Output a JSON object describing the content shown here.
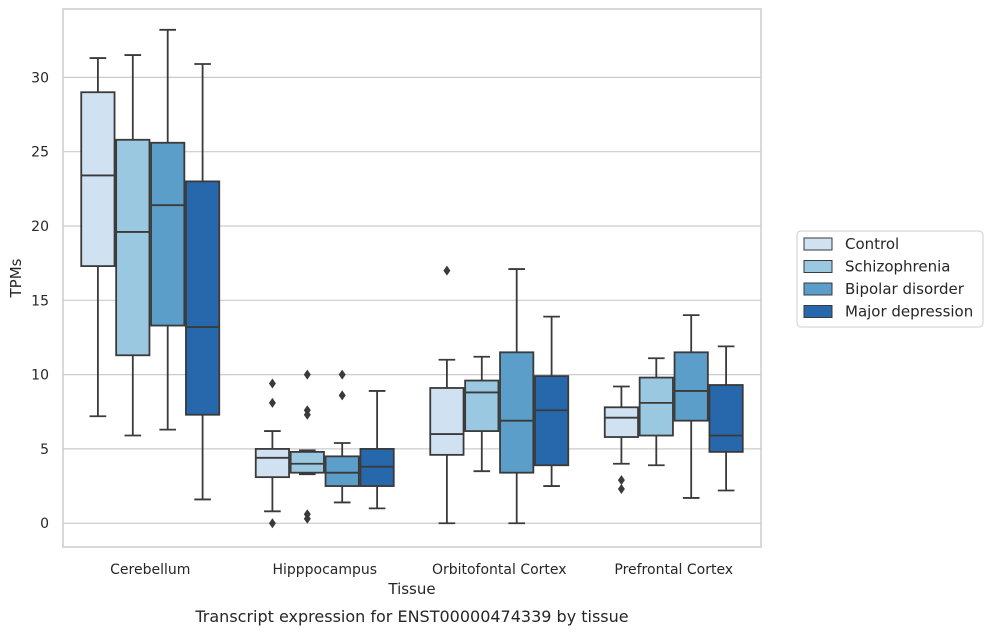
{
  "chart_data": {
    "type": "boxplot",
    "title": "",
    "caption": "Transcript expression for ENST00000474339 by tissue",
    "xlabel": "Tissue",
    "ylabel": "TPMs",
    "ylim": [
      -1.6,
      34.6
    ],
    "yticks": [
      0,
      5,
      10,
      15,
      20,
      25,
      30
    ],
    "grid": "horizontal",
    "legend_position": "right",
    "categories": [
      "Cerebellum",
      "Hipppocampus",
      "Orbitofontal Cortex",
      "Prefrontal Cortex"
    ],
    "series": [
      {
        "name": "Control",
        "color": "#d0e1f2",
        "boxes": [
          {
            "whislo": 7.2,
            "q1": 17.3,
            "med": 23.4,
            "q3": 29.0,
            "whishi": 31.3,
            "fliers": []
          },
          {
            "whislo": 0.8,
            "q1": 3.1,
            "med": 4.4,
            "q3": 5.0,
            "whishi": 6.2,
            "fliers": [
              9.4,
              8.1,
              0.0
            ]
          },
          {
            "whislo": 0.0,
            "q1": 4.6,
            "med": 6.0,
            "q3": 9.1,
            "whishi": 11.0,
            "fliers": [
              17.0
            ]
          },
          {
            "whislo": 4.0,
            "q1": 5.8,
            "med": 7.1,
            "q3": 7.8,
            "whishi": 9.2,
            "fliers": [
              2.9,
              2.3
            ]
          }
        ]
      },
      {
        "name": "Schizophrenia",
        "color": "#9ac8e0",
        "boxes": [
          {
            "whislo": 5.9,
            "q1": 11.3,
            "med": 19.6,
            "q3": 25.8,
            "whishi": 31.5,
            "fliers": []
          },
          {
            "whislo": 3.3,
            "q1": 3.4,
            "med": 4.0,
            "q3": 4.8,
            "whishi": 4.9,
            "fliers": [
              10.0,
              7.6,
              7.3,
              0.6,
              0.3
            ]
          },
          {
            "whislo": 3.5,
            "q1": 6.2,
            "med": 8.8,
            "q3": 9.6,
            "whishi": 11.2,
            "fliers": []
          },
          {
            "whislo": 3.9,
            "q1": 5.9,
            "med": 8.1,
            "q3": 9.8,
            "whishi": 11.1,
            "fliers": []
          }
        ]
      },
      {
        "name": "Bipolar disorder",
        "color": "#5a9ec9",
        "boxes": [
          {
            "whislo": 6.3,
            "q1": 13.3,
            "med": 21.4,
            "q3": 25.6,
            "whishi": 33.2,
            "fliers": []
          },
          {
            "whislo": 1.4,
            "q1": 2.5,
            "med": 3.4,
            "q3": 4.5,
            "whishi": 5.4,
            "fliers": [
              10.0,
              8.6
            ]
          },
          {
            "whislo": 0.0,
            "q1": 3.4,
            "med": 6.9,
            "q3": 11.5,
            "whishi": 17.1,
            "fliers": []
          },
          {
            "whislo": 1.7,
            "q1": 6.9,
            "med": 8.9,
            "q3": 11.5,
            "whishi": 14.0,
            "fliers": []
          }
        ]
      },
      {
        "name": "Major depression",
        "color": "#2767ab",
        "boxes": [
          {
            "whislo": 1.6,
            "q1": 7.3,
            "med": 13.2,
            "q3": 23.0,
            "whishi": 30.9,
            "fliers": []
          },
          {
            "whislo": 1.0,
            "q1": 2.5,
            "med": 3.8,
            "q3": 5.0,
            "whishi": 8.9,
            "fliers": []
          },
          {
            "whislo": 2.5,
            "q1": 3.9,
            "med": 7.6,
            "q3": 9.9,
            "whishi": 13.9,
            "fliers": []
          },
          {
            "whislo": 2.2,
            "q1": 4.8,
            "med": 5.9,
            "q3": 9.3,
            "whishi": 11.9,
            "fliers": []
          }
        ]
      }
    ]
  }
}
